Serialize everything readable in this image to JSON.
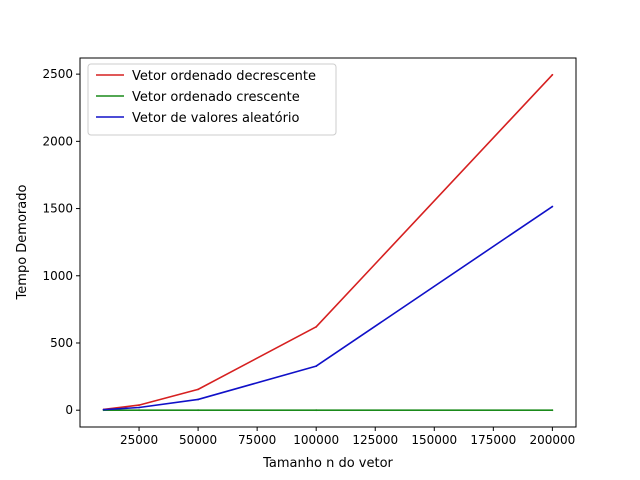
{
  "chart_data": {
    "type": "line",
    "title": "",
    "xlabel": "Tamanho n do vetor",
    "ylabel": "Tempo Demorado",
    "xlim": [
      0,
      210000
    ],
    "ylim": [
      -125,
      2620
    ],
    "xticks": [
      25000,
      50000,
      75000,
      100000,
      125000,
      150000,
      175000,
      200000
    ],
    "yticks": [
      0,
      500,
      1000,
      1500,
      2000,
      2500
    ],
    "grid": false,
    "legend_position": "top-left",
    "series": [
      {
        "name": "Vetor ordenado decrescente",
        "color": "#d62020",
        "x": [
          10000,
          25000,
          50000,
          100000,
          200000
        ],
        "y": [
          6,
          38,
          155,
          620,
          2495
        ]
      },
      {
        "name": "Vetor ordenado crescente",
        "color": "#1a8a1a",
        "x": [
          10000,
          25000,
          50000,
          100000,
          200000
        ],
        "y": [
          0,
          0,
          0,
          0,
          0
        ]
      },
      {
        "name": "Vetor de valores aleatório",
        "color": "#1010c8",
        "x": [
          10000,
          25000,
          50000,
          100000,
          200000
        ],
        "y": [
          4,
          20,
          80,
          328,
          1515
        ]
      }
    ]
  }
}
